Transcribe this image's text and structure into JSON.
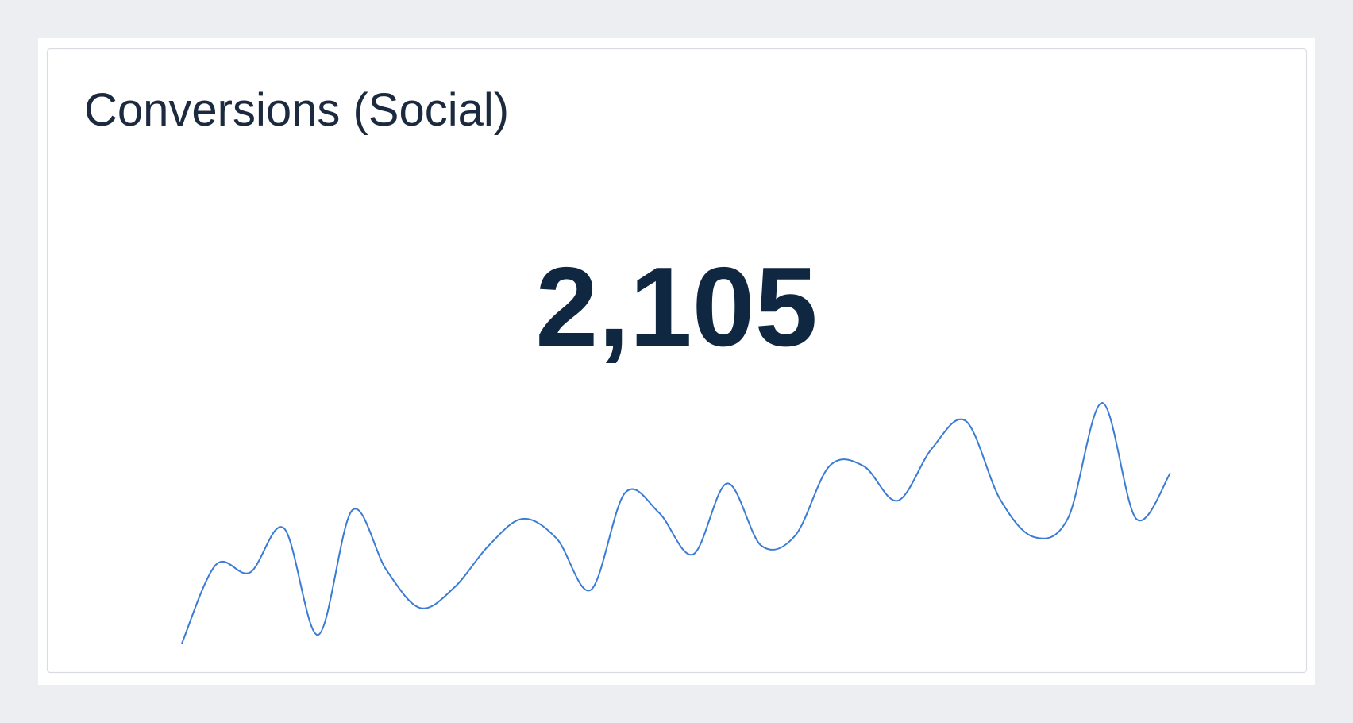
{
  "chart_data": {
    "type": "line",
    "title": "Conversions (Social)",
    "kpi": {
      "value": 2105,
      "label": "2,105"
    },
    "color": "#3a7bd5",
    "values": [
      1.5,
      10.6,
      9.7,
      14.8,
      2.5,
      16.9,
      10,
      5.6,
      8,
      12.8,
      15.9,
      13.6,
      7.7,
      18.9,
      16.6,
      11.8,
      20,
      12.8,
      14,
      22,
      22,
      18,
      24,
      27.2,
      18.2,
      13.8,
      16,
      29.3,
      15.9,
      21.2
    ]
  }
}
